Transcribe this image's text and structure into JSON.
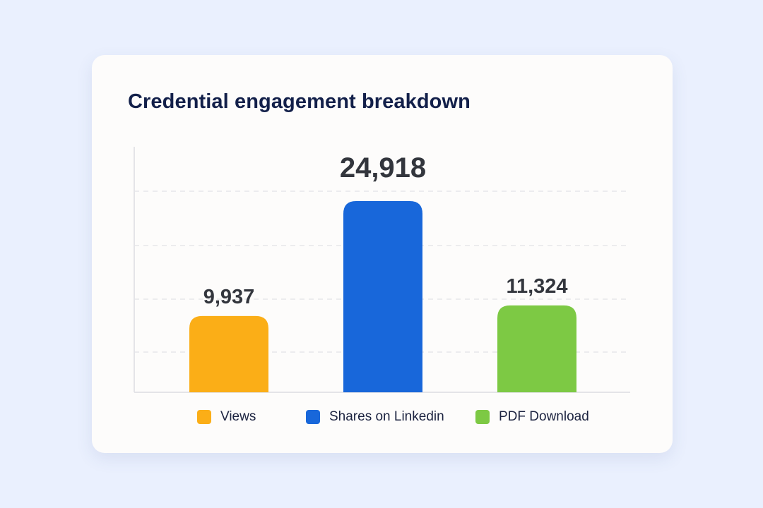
{
  "chart_data": {
    "type": "bar",
    "title": "Credential engagement breakdown",
    "categories": [
      "Views",
      "Shares on Linkedin",
      "PDF Download"
    ],
    "values": [
      9937,
      24918,
      11324
    ],
    "value_labels": [
      "9,937",
      "24,918",
      "11,324"
    ],
    "colors": [
      "#FBAE17",
      "#1867DA",
      "#7DC944"
    ],
    "ylim": [
      0,
      32000
    ],
    "grid": true,
    "legend": "bottom",
    "xlabel": "",
    "ylabel": ""
  }
}
